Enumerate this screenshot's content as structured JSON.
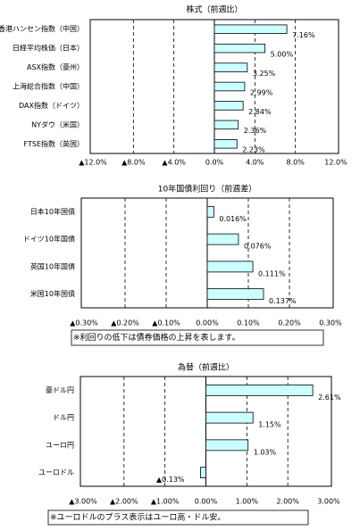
{
  "chart_data": [
    {
      "type": "bar",
      "orientation": "horizontal",
      "title": "株式（前週比）",
      "categories": [
        "香港ハンセン指数（中国）",
        "日経平均株価（日本）",
        "ASX指数（豪州）",
        "上海総合指数（中国）",
        "DAX指数（ドイツ）",
        "NYダウ（米国）",
        "FTSE指数（英国）"
      ],
      "values": [
        7.16,
        5.0,
        3.25,
        2.99,
        2.84,
        2.36,
        2.23
      ],
      "value_labels": [
        "7.16%",
        "5.00%",
        "3.25%",
        "2.99%",
        "2.84%",
        "2.36%",
        "2.23%"
      ],
      "color": "#ccffff",
      "negative_label_color": "#e00000",
      "xlim": [
        -12,
        12
      ],
      "xticks": [
        {
          "value": -12,
          "label": "▲12.0%"
        },
        {
          "value": -8,
          "label": "▲8.0%"
        },
        {
          "value": -4,
          "label": "▲4.0%"
        },
        {
          "value": 0,
          "label": "0.0%"
        },
        {
          "value": 4,
          "label": "4.0%"
        },
        {
          "value": 8,
          "label": "8.0%"
        },
        {
          "value": 12,
          "label": "12.0%"
        }
      ],
      "grid": true
    },
    {
      "type": "bar",
      "orientation": "horizontal",
      "title": "10年国債利回り（前週差）",
      "categories": [
        "日本10年国債",
        "ドイツ10年国債",
        "英国10年国債",
        "米国10年国債"
      ],
      "values": [
        0.016,
        0.076,
        0.111,
        0.137
      ],
      "value_labels": [
        "0.016%",
        "0.076%",
        "0.111%",
        "0.137%"
      ],
      "color": "#ccffff",
      "negative_label_color": "#e00000",
      "xlim": [
        -0.3,
        0.3
      ],
      "xticks": [
        {
          "value": -0.3,
          "label": "▲0.30%"
        },
        {
          "value": -0.2,
          "label": "▲0.20%"
        },
        {
          "value": -0.1,
          "label": "▲0.10%"
        },
        {
          "value": 0,
          "label": "0.00%"
        },
        {
          "value": 0.1,
          "label": "0.10%"
        },
        {
          "value": 0.2,
          "label": "0.20%"
        },
        {
          "value": 0.3,
          "label": "0.30%"
        }
      ],
      "grid": true,
      "note": "※利回りの低下は債券価格の上昇を表します。"
    },
    {
      "type": "bar",
      "orientation": "horizontal",
      "title": "為替（前週比）",
      "categories": [
        "豪ドル円",
        "ドル円",
        "ユーロ円",
        "ユーロドル"
      ],
      "values": [
        2.61,
        1.15,
        1.03,
        -0.13
      ],
      "value_labels": [
        "2.61%",
        "1.15%",
        "1.03%",
        "▲0.13%"
      ],
      "color": "#ccffff",
      "negative_label_color": "#e00000",
      "xlim": [
        -3,
        3
      ],
      "xticks": [
        {
          "value": -3,
          "label": "▲3.00%"
        },
        {
          "value": -2,
          "label": "▲2.00%"
        },
        {
          "value": -1,
          "label": "▲1.00%"
        },
        {
          "value": 0,
          "label": "0.00%"
        },
        {
          "value": 1,
          "label": "1.00%"
        },
        {
          "value": 2,
          "label": "2.00%"
        },
        {
          "value": 3,
          "label": "3.00%"
        }
      ],
      "grid": true,
      "note": "※ユーロドルのプラス表示はユーロ高・ドル安。"
    }
  ]
}
